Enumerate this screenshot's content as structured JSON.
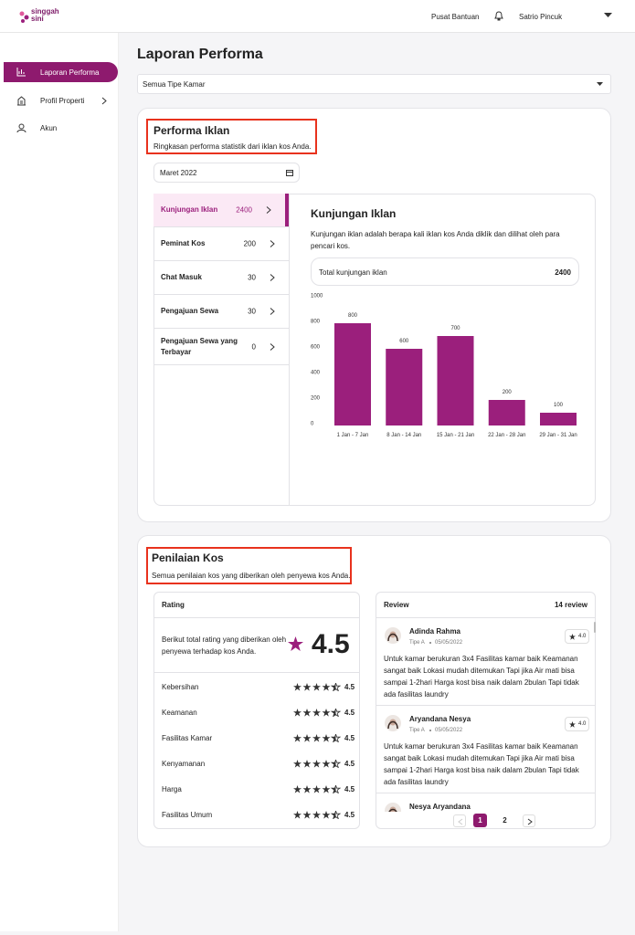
{
  "header": {
    "logo": "singgah sini",
    "help": "Pusat Bantuan",
    "user": "Satrio Pincuk"
  },
  "sidebar": {
    "items": [
      "Laporan Performa",
      "Profil Properti",
      "Akun"
    ]
  },
  "page": {
    "title": "Laporan Performa",
    "room_filter": "Semua Tipe Kamar"
  },
  "performance": {
    "title": "Performa Iklan",
    "subtitle": "Ringkasan performa statistik dari iklan kos Anda.",
    "month": "Maret 2022",
    "metrics": [
      {
        "label": "Kunjungan Iklan",
        "value": 2400
      },
      {
        "label": "Peminat Kos",
        "value": 200
      },
      {
        "label": "Chat Masuk",
        "value": 30
      },
      {
        "label": "Pengajuan Sewa",
        "value": 30
      },
      {
        "label": "Pengajuan Sewa yang Terbayar",
        "value": 0
      }
    ],
    "detail_title": "Kunjungan Iklan",
    "detail_desc": "Kunjungan iklan adalah berapa kali iklan kos Anda diklik dan dilihat oleh para pencari kos.",
    "total_label": "Total kunjungan iklan",
    "total_value": 2400
  },
  "chart_data": {
    "type": "bar",
    "categories": [
      "1 Jan - 7 Jan",
      "8 Jan - 14 Jan",
      "15 Jan - 21 Jan",
      "22 Jan - 28 Jan",
      "29 Jan - 31 Jan"
    ],
    "values": [
      800,
      600,
      700,
      200,
      100
    ],
    "color": "#9b1f7c",
    "ylim": [
      0,
      1000
    ],
    "yticks": [
      0,
      200,
      400,
      600,
      800,
      1000
    ],
    "grid": false
  },
  "rating": {
    "title": "Penilaian Kos",
    "subtitle": "Semua penilaian kos yang diberikan oleh penyewa kos Anda.",
    "panel_title": "Rating",
    "summary": "Berikut total rating yang diberikan oleh penyewa terhadap kos Anda.",
    "overall": 4.5,
    "rows": [
      {
        "label": "Kebersihan",
        "value": 4.5
      },
      {
        "label": "Keamanan",
        "value": 4.5
      },
      {
        "label": "Fasilitas Kamar",
        "value": 4.5
      },
      {
        "label": "Kenyamanan",
        "value": 4.5
      },
      {
        "label": "Harga",
        "value": 4.5
      },
      {
        "label": "Fasilitas Umum",
        "value": 4.5
      }
    ]
  },
  "reviews": {
    "title": "Review",
    "count": "14 review",
    "items": [
      {
        "name": "Adinda Rahma",
        "type": "Tipe A",
        "date": "05/05/2022",
        "rating": "4.0",
        "text": "Untuk kamar berukuran 3x4 Fasilitas kamar baik Keamanan sangat baik Lokasi mudah ditemukan Tapi jika Air mati bisa sampai 1-2hari Harga kost bisa naik dalam 2bulan Tapi tidak ada fasilitas laundry"
      },
      {
        "name": "Aryandana Nesya",
        "type": "Tipe A",
        "date": "05/05/2022",
        "rating": "4.0",
        "text": "Untuk kamar berukuran 3x4 Fasilitas kamar baik Keamanan sangat baik Lokasi mudah ditemukan Tapi jika Air mati bisa sampai 1-2hari Harga kost bisa naik dalam 2bulan Tapi tidak ada fasilitas laundry"
      },
      {
        "name": "Nesya Aryandana"
      }
    ],
    "pages": [
      1,
      2
    ]
  }
}
